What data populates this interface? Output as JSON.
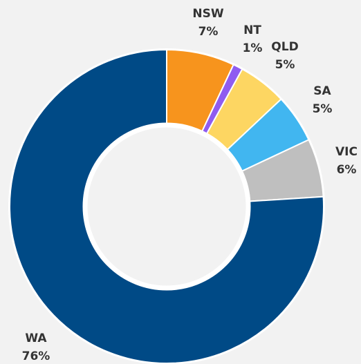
{
  "chart_data": {
    "type": "donut",
    "categories": [
      "NSW",
      "NT",
      "QLD",
      "SA",
      "VIC",
      "WA"
    ],
    "values": [
      7,
      1,
      5,
      5,
      6,
      76
    ],
    "value_labels": [
      "7%",
      "1%",
      "5%",
      "5%",
      "6%",
      "76%"
    ],
    "colors": [
      "#f7941d",
      "#8f5cf0",
      "#fdd662",
      "#41b6f0",
      "#bfbfbf",
      "#004a86"
    ]
  }
}
